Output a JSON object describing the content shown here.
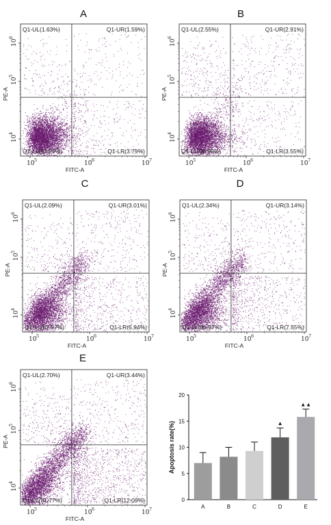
{
  "chart_data": [
    {
      "type": "scatter",
      "title": "A",
      "xlabel": "FITC-A",
      "ylabel": "PE-A",
      "x_scale": "log",
      "y_scale": "log",
      "x_ticks": [
        "5",
        "6",
        "7"
      ],
      "y_ticks": [
        "4",
        "5",
        "6"
      ],
      "quadrants": {
        "UL": "Q1-UL(1.63%)",
        "UR": "Q1-UR(1.59%)",
        "LL": "Q1-LL(92.99%)",
        "LR": "Q1-LR(3.79%)"
      },
      "density": {
        "ll": 0.93,
        "ul": 0.016,
        "ur": 0.016,
        "lr": 0.038,
        "diag": 0.05
      }
    },
    {
      "type": "scatter",
      "title": "B",
      "xlabel": "FITC-A",
      "ylabel": "PE-A",
      "x_scale": "log",
      "y_scale": "log",
      "x_ticks": [
        "5",
        "6",
        "7"
      ],
      "y_ticks": [
        "4",
        "5",
        "6"
      ],
      "quadrants": {
        "UL": "Q1-UL(2.55%)",
        "UR": "Q1-UR(2.91%)",
        "LL": "Q1-LL(90.99%)",
        "LR": "Q1-LR(3.55%)"
      },
      "density": {
        "ll": 0.91,
        "ul": 0.026,
        "ur": 0.029,
        "lr": 0.036,
        "diag": 0.1
      }
    },
    {
      "type": "scatter",
      "title": "C",
      "xlabel": "FITC-A",
      "ylabel": "PE-A",
      "x_scale": "log",
      "y_scale": "log",
      "x_ticks": [
        "5",
        "6",
        "7"
      ],
      "y_ticks": [
        "4",
        "5",
        "6"
      ],
      "quadrants": {
        "UL": "Q1-UL(2.09%)",
        "UR": "Q1-UR(3.01%)",
        "LL": "Q1-LL(87.97%)",
        "LR": "Q1-LR(6.94%)"
      },
      "density": {
        "ll": 0.88,
        "ul": 0.021,
        "ur": 0.03,
        "lr": 0.069,
        "diag": 0.55
      }
    },
    {
      "type": "scatter",
      "title": "D",
      "xlabel": "FITC-A",
      "ylabel": "PE-A",
      "x_scale": "log",
      "y_scale": "log",
      "x_ticks": [
        "5",
        "6",
        "7"
      ],
      "y_ticks": [
        "4",
        "5",
        "6"
      ],
      "quadrants": {
        "UL": "Q1-UL(2.34%)",
        "UR": "Q1-UR(3.14%)",
        "LL": "Q1-LL(86.97%)",
        "LR": "Q1-LR(7.55%)"
      },
      "density": {
        "ll": 0.87,
        "ul": 0.023,
        "ur": 0.031,
        "lr": 0.075,
        "diag": 0.65
      }
    },
    {
      "type": "scatter",
      "title": "E",
      "xlabel": "FITC-A",
      "ylabel": "PE-A",
      "x_scale": "log",
      "y_scale": "log",
      "x_ticks": [
        "5",
        "6",
        "7"
      ],
      "y_ticks": [
        "4",
        "5",
        "6"
      ],
      "quadrants": {
        "UL": "Q1-UL(2.70%)",
        "UR": "Q1-UR(3.44%)",
        "LL": "Q1-LL(81.77%)",
        "LR": "Q1-LR(12.09%)"
      },
      "density": {
        "ll": 0.82,
        "ul": 0.027,
        "ur": 0.034,
        "lr": 0.12,
        "diag": 0.8
      }
    },
    {
      "type": "bar",
      "title": "",
      "xlabel": "",
      "ylabel": "Apoptosis rate(%)",
      "ylim": [
        0,
        20
      ],
      "y_ticks": [
        0,
        5,
        10,
        15,
        20
      ],
      "categories": [
        "A",
        "B",
        "C",
        "D",
        "E"
      ],
      "values": [
        7.0,
        8.2,
        9.3,
        11.9,
        15.8
      ],
      "errors": [
        2.0,
        1.8,
        1.7,
        1.8,
        1.5
      ],
      "colors": [
        "#9d9d9d",
        "#8b8b8b",
        "#cfcfcf",
        "#5e5e5e",
        "#a9a9ae"
      ],
      "markers": [
        "",
        "",
        "",
        "▲",
        "▲▲"
      ]
    }
  ]
}
